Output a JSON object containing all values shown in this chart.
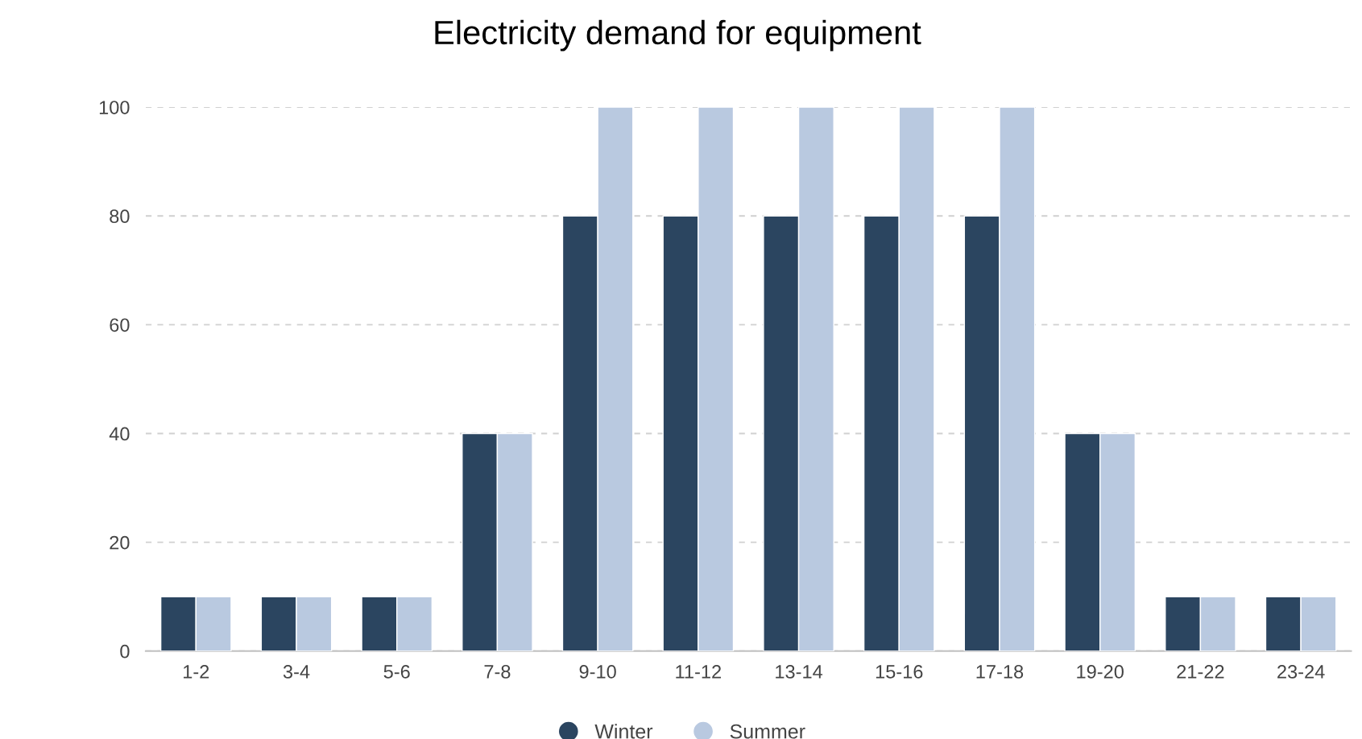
{
  "chart_data": {
    "type": "bar",
    "title": "Electricity demand for equipment",
    "categories": [
      "1-2",
      "3-4",
      "5-6",
      "7-8",
      "9-10",
      "11-12",
      "13-14",
      "15-16",
      "17-18",
      "19-20",
      "21-22",
      "23-24"
    ],
    "series": [
      {
        "name": "Winter",
        "color": "#2b4560",
        "values": [
          10,
          10,
          10,
          40,
          80,
          80,
          80,
          80,
          80,
          40,
          10,
          10
        ]
      },
      {
        "name": "Summer",
        "color": "#b9c9e0",
        "values": [
          10,
          10,
          10,
          40,
          100,
          100,
          100,
          100,
          100,
          40,
          10,
          10
        ]
      }
    ],
    "ylim": [
      0,
      100
    ],
    "yticks": [
      0,
      20,
      40,
      60,
      80,
      100
    ],
    "grid": "y",
    "legend": "bottom"
  }
}
